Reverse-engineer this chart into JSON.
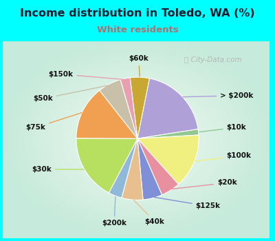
{
  "title": "Income distribution in Toledo, WA (%)",
  "subtitle": "White residents",
  "title_color": "#1a1a2e",
  "subtitle_color": "#b07070",
  "bg_top_color": "#00ffff",
  "bg_chart_color": "#d8efe8",
  "watermark": "City-Data.com",
  "slices": [
    {
      "label": "$60k",
      "value": 5.0,
      "color": "#c8a832"
    },
    {
      "label": "> $200k",
      "value": 19.0,
      "color": "#b0a0d8"
    },
    {
      "label": "$10k",
      "value": 1.5,
      "color": "#90c890"
    },
    {
      "label": "$100k",
      "value": 14.0,
      "color": "#f0f080"
    },
    {
      "label": "$20k",
      "value": 5.0,
      "color": "#e890a0"
    },
    {
      "label": "$125k",
      "value": 5.0,
      "color": "#8090d8"
    },
    {
      "label": "$40k",
      "value": 5.5,
      "color": "#e8c090"
    },
    {
      "label": "$200k",
      "value": 3.5,
      "color": "#90b8d8"
    },
    {
      "label": "$30k",
      "value": 17.0,
      "color": "#b8e060"
    },
    {
      "label": "$75k",
      "value": 14.0,
      "color": "#f0a050"
    },
    {
      "label": "$50k",
      "value": 6.0,
      "color": "#c8c0a8"
    },
    {
      "label": "$150k",
      "value": 2.5,
      "color": "#e8a0b0"
    }
  ],
  "startangle": 97,
  "figsize": [
    4.0,
    3.5
  ],
  "dpi": 100
}
